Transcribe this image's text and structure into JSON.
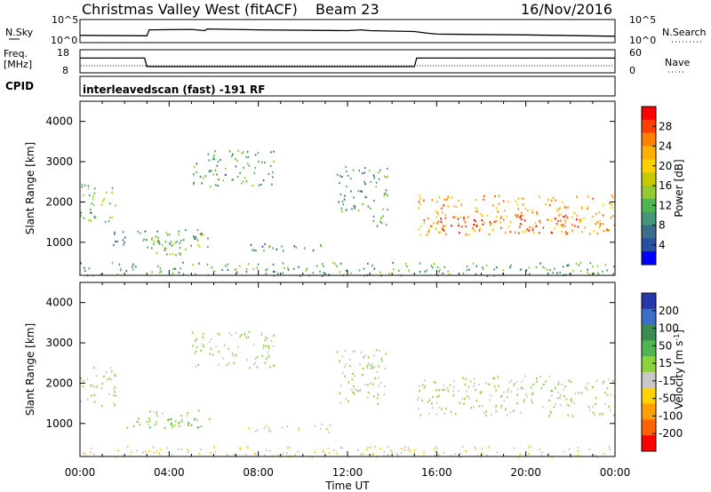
{
  "header": {
    "station": "Christmas Valley West (fitACF)",
    "beam": "Beam 23",
    "date": "16/Nov/2016"
  },
  "strip1": {
    "left_label": "N.Sky",
    "right_label": "N.Search",
    "left_ticks": [
      "10^5",
      "10^0"
    ],
    "right_ticks": [
      "10^5",
      "10^0"
    ]
  },
  "strip2": {
    "left_label_1": "Freq.",
    "left_label_2": "[MHz]",
    "left_ticks": [
      "18",
      "8"
    ],
    "right_label": "Nave",
    "right_ticks": [
      "60",
      "0"
    ]
  },
  "strip3": {
    "label": "CPID",
    "text": "interleavedscan (fast) -191 RF"
  },
  "power_colorbar": {
    "label": "Power [dB]",
    "ticks": [
      "28",
      "24",
      "20",
      "16",
      "12",
      "8",
      "4"
    ],
    "colors": [
      "#ff0000",
      "#ff4000",
      "#ff8000",
      "#ffb000",
      "#ffd000",
      "#c8c800",
      "#96c832",
      "#50b450",
      "#469678",
      "#3c6e8c",
      "#2850a0",
      "#0000ff"
    ]
  },
  "velocity_colorbar": {
    "label": "Velocity [m s",
    "label_sup": "-1",
    "label_end": "]",
    "ticks": [
      "200",
      "100",
      "50",
      "15",
      "-15",
      "-50",
      "-100",
      "-200"
    ],
    "colors": [
      "#2838a8",
      "#3c6ec8",
      "#3c8c50",
      "#50b450",
      "#8cd23c",
      "#c8c8c8",
      "#ffd200",
      "#ffa000",
      "#ff6400",
      "#ff0000"
    ]
  },
  "x_axis": {
    "title": "Time UT",
    "ticks": [
      "00:00",
      "04:00",
      "08:00",
      "12:00",
      "16:00",
      "20:00",
      "00:00"
    ]
  },
  "chart_data": [
    {
      "type": "line",
      "title": "N.Sky / N.Search",
      "x": [
        0,
        3,
        3.1,
        5,
        5.6,
        5.7,
        8,
        12,
        12.6,
        13,
        15,
        15.6,
        16,
        20,
        24
      ],
      "series": [
        {
          "values": [
            1.5,
            1.4,
            2.8,
            2.9,
            2.6,
            3.0,
            2.8,
            2.6,
            2.8,
            2.6,
            2.4,
            2.0,
            1.8,
            1.6,
            1.3
          ]
        }
      ],
      "ylim": [
        0,
        5
      ]
    },
    {
      "type": "line",
      "title": "Freq. [MHz]",
      "x": [
        0,
        2.9,
        3.0,
        15.0,
        15.1,
        24
      ],
      "series": [
        {
          "values": [
            14.5,
            14.5,
            10.5,
            10.5,
            14.5,
            14.5
          ]
        }
      ],
      "ylim": [
        8,
        18
      ]
    },
    {
      "type": "heatmap",
      "title": "Power [dB]",
      "ylabel": "Slant Range [km]",
      "xlabel": "Time UT",
      "ylim": [
        180,
        4500
      ],
      "yticks": [
        1000,
        2000,
        3000,
        4000
      ],
      "x_range_hours": [
        0,
        24
      ],
      "clim": [
        0,
        30
      ],
      "regions": [
        {
          "t0": 0.0,
          "t1": 1.6,
          "r0": 1450,
          "r1": 2450,
          "level": 12
        },
        {
          "t0": 1.4,
          "t1": 5.8,
          "r0": 900,
          "r1": 1300,
          "level": 8
        },
        {
          "t0": 3.0,
          "t1": 5.6,
          "r0": 700,
          "r1": 1350,
          "level": 12
        },
        {
          "t0": 5.0,
          "t1": 8.8,
          "r0": 2400,
          "r1": 3300,
          "level": 10
        },
        {
          "t0": 7.5,
          "t1": 11.8,
          "r0": 800,
          "r1": 1000,
          "level": 8
        },
        {
          "t0": 11.5,
          "t1": 13.2,
          "r0": 1700,
          "r1": 2900,
          "level": 8
        },
        {
          "t0": 13.0,
          "t1": 13.8,
          "r0": 1400,
          "r1": 2900,
          "level": 10
        },
        {
          "t0": 15.1,
          "t1": 24.0,
          "r0": 1200,
          "r1": 2200,
          "level": 22
        },
        {
          "t0": 16.0,
          "t1": 22.5,
          "r0": 1250,
          "r1": 1700,
          "level": 28
        },
        {
          "t0": 0.0,
          "t1": 24.0,
          "r0": 180,
          "r1": 520,
          "level": 10
        }
      ]
    },
    {
      "type": "heatmap",
      "title": "Velocity [m s-1]",
      "ylabel": "Slant Range [km]",
      "xlabel": "Time UT",
      "ylim": [
        180,
        4500
      ],
      "yticks": [
        1000,
        2000,
        3000,
        4000
      ],
      "x_range_hours": [
        0,
        24
      ],
      "clim": [
        -200,
        200
      ],
      "regions": [
        {
          "t0": 0.0,
          "t1": 1.6,
          "r0": 1450,
          "r1": 2450,
          "velocity": 0
        },
        {
          "t0": 1.4,
          "t1": 5.8,
          "r0": 900,
          "r1": 1150,
          "velocity": 40
        },
        {
          "t0": 3.0,
          "t1": 5.6,
          "r0": 900,
          "r1": 1350,
          "velocity": 0
        },
        {
          "t0": 5.0,
          "t1": 8.8,
          "r0": 2400,
          "r1": 3300,
          "velocity": 0
        },
        {
          "t0": 7.5,
          "t1": 11.8,
          "r0": 800,
          "r1": 1000,
          "velocity": -40
        },
        {
          "t0": 11.5,
          "t1": 13.8,
          "r0": 1500,
          "r1": 2900,
          "velocity": 0
        },
        {
          "t0": 15.1,
          "t1": 24.0,
          "r0": 1200,
          "r1": 2200,
          "velocity": 0
        },
        {
          "t0": 0.0,
          "t1": 24.0,
          "r0": 180,
          "r1": 450,
          "velocity": -40
        }
      ]
    }
  ]
}
